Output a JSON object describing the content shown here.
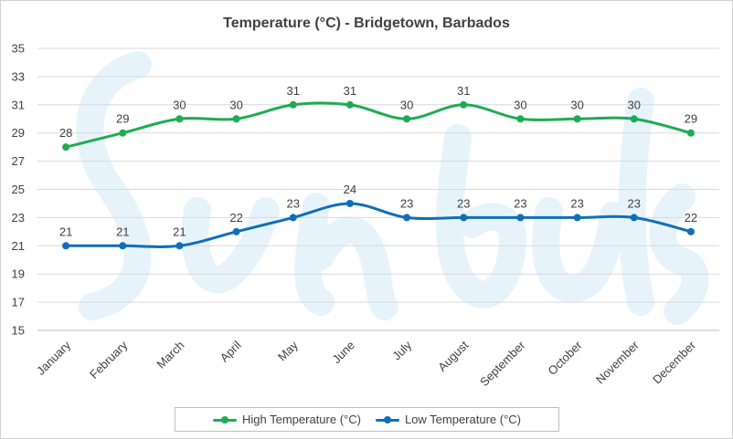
{
  "chart_data": {
    "type": "line",
    "title": "Temperature (°C) - Bridgetown, Barbados",
    "categories": [
      "January",
      "February",
      "March",
      "April",
      "May",
      "June",
      "July",
      "August",
      "September",
      "October",
      "November",
      "December"
    ],
    "series": [
      {
        "name": "High Temperature (°C)",
        "color": "#1fab53",
        "values": [
          28,
          29,
          30,
          30,
          31,
          31,
          30,
          31,
          30,
          30,
          30,
          29
        ]
      },
      {
        "name": "Low Temperature (°C)",
        "color": "#0f6fb7",
        "values": [
          21,
          21,
          21,
          22,
          23,
          24,
          23,
          23,
          23,
          23,
          23,
          22
        ]
      }
    ],
    "ylim": [
      15,
      35
    ],
    "yticks": [
      15,
      17,
      19,
      21,
      23,
      25,
      27,
      29,
      31,
      33,
      35
    ],
    "grid": true,
    "legend_position": "bottom",
    "smoothed": true,
    "data_labels": true,
    "watermark_color": "#e6f3fb"
  }
}
